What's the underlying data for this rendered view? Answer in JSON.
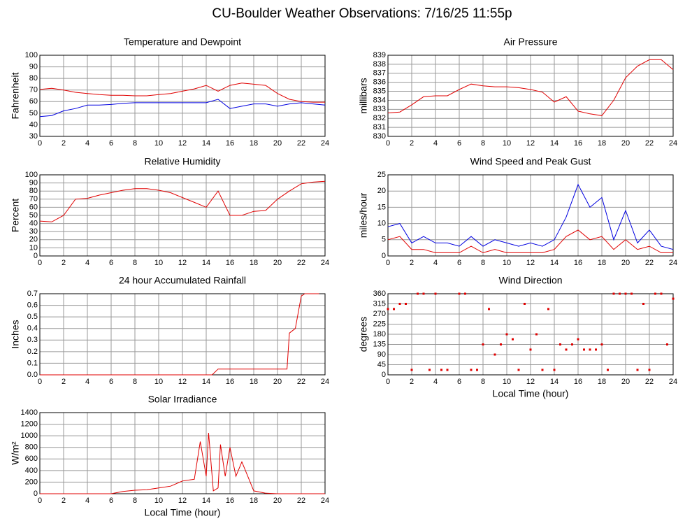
{
  "title": "CU-Boulder Weather Observations: 7/16/25 11:55p",
  "chart_data": [
    {
      "type": "line",
      "title": "Temperature and Dewpoint",
      "ylabel": "Fahrenheit",
      "x": [
        0,
        1,
        2,
        3,
        4,
        5,
        6,
        7,
        8,
        9,
        10,
        11,
        12,
        13,
        14,
        15,
        16,
        17,
        18,
        19,
        20,
        21,
        22,
        23,
        24
      ],
      "series": [
        {
          "color": "#e00000",
          "values": [
            70.5,
            71.5,
            70,
            68,
            67,
            66,
            65.5,
            65.5,
            65,
            65,
            66,
            67,
            69,
            71,
            74,
            69,
            74,
            76,
            75,
            74,
            67,
            62,
            60,
            59.5,
            59.5
          ]
        },
        {
          "color": "#0000e0",
          "values": [
            47,
            48,
            52,
            54,
            57,
            57,
            57.5,
            58.5,
            59,
            59,
            59,
            59,
            59,
            59,
            59,
            62,
            54,
            56,
            58,
            58,
            56,
            58,
            59,
            58,
            57
          ]
        }
      ],
      "xlim": [
        0,
        24
      ],
      "xticks": [
        0,
        2,
        4,
        6,
        8,
        10,
        12,
        14,
        16,
        18,
        20,
        22,
        24
      ],
      "ylim": [
        30,
        100
      ],
      "yticks": [
        30,
        40,
        50,
        60,
        70,
        80,
        90,
        100
      ],
      "grid": true
    },
    {
      "type": "line",
      "title": "Air Pressure",
      "ylabel": "millibars",
      "x": [
        0,
        1,
        2,
        3,
        4,
        5,
        6,
        7,
        8,
        9,
        10,
        11,
        12,
        13,
        14,
        15,
        16,
        17,
        18,
        19,
        20,
        21,
        22,
        23,
        24
      ],
      "series": [
        {
          "color": "#e00000",
          "values": [
            832.6,
            832.7,
            833.5,
            834.4,
            834.5,
            834.5,
            835.2,
            835.8,
            835.6,
            835.5,
            835.5,
            835.4,
            835.2,
            834.9,
            833.8,
            834.4,
            832.8,
            832.5,
            832.3,
            834.0,
            836.5,
            837.8,
            838.5,
            838.5,
            837.4
          ]
        }
      ],
      "xlim": [
        0,
        24
      ],
      "xticks": [
        0,
        2,
        4,
        6,
        8,
        10,
        12,
        14,
        16,
        18,
        20,
        22,
        24
      ],
      "ylim": [
        830,
        839
      ],
      "yticks": [
        830,
        831,
        832,
        833,
        834,
        835,
        836,
        837,
        838,
        839
      ],
      "grid": true
    },
    {
      "type": "line",
      "title": "Relative Humidity",
      "ylabel": "Percent",
      "x": [
        0,
        1,
        2,
        3,
        4,
        5,
        6,
        7,
        8,
        9,
        10,
        11,
        12,
        13,
        14,
        15,
        16,
        17,
        18,
        19,
        20,
        21,
        22,
        23,
        24
      ],
      "series": [
        {
          "color": "#e00000",
          "values": [
            43,
            42,
            50,
            70,
            71,
            75,
            78,
            81,
            83,
            83,
            81,
            78,
            72,
            66,
            60,
            80,
            50,
            50,
            55,
            56,
            70,
            80,
            89,
            91,
            92
          ]
        }
      ],
      "xlim": [
        0,
        24
      ],
      "xticks": [
        0,
        2,
        4,
        6,
        8,
        10,
        12,
        14,
        16,
        18,
        20,
        22,
        24
      ],
      "ylim": [
        0,
        100
      ],
      "yticks": [
        0,
        10,
        20,
        30,
        40,
        50,
        60,
        70,
        80,
        90,
        100
      ],
      "grid": true
    },
    {
      "type": "line",
      "title": "Wind Speed and Peak Gust",
      "ylabel": "miles/hour",
      "x": [
        0,
        1,
        2,
        3,
        4,
        5,
        6,
        7,
        8,
        9,
        10,
        11,
        12,
        13,
        14,
        15,
        16,
        17,
        18,
        19,
        20,
        21,
        22,
        23,
        24
      ],
      "series": [
        {
          "color": "#0000e0",
          "values": [
            9,
            10,
            4,
            6,
            4,
            4,
            3,
            6,
            3,
            5,
            4,
            3,
            4,
            3,
            5,
            12,
            22,
            15,
            18,
            5,
            14,
            4,
            8,
            3,
            2
          ]
        },
        {
          "color": "#e00000",
          "values": [
            5,
            6,
            2,
            2,
            1,
            1,
            1,
            3,
            1,
            2,
            1,
            1,
            1,
            1,
            2,
            6,
            8,
            5,
            6,
            2,
            5,
            2,
            3,
            1,
            1
          ]
        }
      ],
      "xlim": [
        0,
        24
      ],
      "xticks": [
        0,
        2,
        4,
        6,
        8,
        10,
        12,
        14,
        16,
        18,
        20,
        22,
        24
      ],
      "ylim": [
        0,
        25
      ],
      "yticks": [
        0,
        5,
        10,
        15,
        20,
        25
      ],
      "grid": true
    },
    {
      "type": "line",
      "title": "24 hour Accumulated Rainfall",
      "ylabel": "Inches",
      "x": [
        0,
        14.5,
        15,
        20.8,
        21,
        21.5,
        22,
        22.3,
        23.5
      ],
      "series": [
        {
          "color": "#e00000",
          "values": [
            0,
            0,
            0.05,
            0.05,
            0.36,
            0.4,
            0.68,
            0.7,
            0.7
          ]
        }
      ],
      "xlim": [
        0,
        24
      ],
      "xticks": [
        0,
        2,
        4,
        6,
        8,
        10,
        12,
        14,
        16,
        18,
        20,
        22,
        24
      ],
      "ylim": [
        0,
        0.7
      ],
      "yticks": [
        {
          "value": 0,
          "label": "0.0"
        },
        0.1,
        0.2,
        0.3,
        0.4,
        0.5,
        0.6,
        0.7
      ],
      "grid": true
    },
    {
      "type": "scatter",
      "title": "Wind Direction",
      "ylabel": "degrees",
      "xlabel": "Local Time (hour)",
      "x": [
        0,
        0.5,
        1,
        1.5,
        2,
        2.5,
        3,
        3.5,
        4,
        4.5,
        5,
        6,
        6.5,
        7,
        7.5,
        8,
        8.5,
        9,
        9.5,
        10,
        10.5,
        11,
        11.5,
        12,
        12.5,
        13,
        13.5,
        14,
        14.5,
        15,
        15.5,
        16,
        16.5,
        17,
        17.5,
        18,
        18.5,
        19,
        19.5,
        20,
        20.5,
        21,
        21.5,
        22,
        22.5,
        23,
        23.5,
        24
      ],
      "series": [
        {
          "color": "#e00000",
          "values": [
            292,
            292,
            315,
            315,
            22,
            360,
            360,
            22,
            360,
            22,
            22,
            360,
            360,
            22,
            22,
            135,
            292,
            90,
            135,
            180,
            158,
            22,
            315,
            112,
            180,
            22,
            292,
            22,
            135,
            112,
            135,
            158,
            112,
            112,
            112,
            135,
            22,
            360,
            360,
            360,
            360,
            22,
            315,
            22,
            360,
            360,
            135,
            338
          ]
        }
      ],
      "xlim": [
        0,
        24
      ],
      "xticks": [
        0,
        2,
        4,
        6,
        8,
        10,
        12,
        14,
        16,
        18,
        20,
        22,
        24
      ],
      "ylim": [
        0,
        360
      ],
      "yticks": [
        0,
        45,
        90,
        135,
        180,
        225,
        270,
        315,
        360
      ],
      "grid": true
    },
    {
      "type": "line",
      "title": "Solar Irradiance",
      "ylabel": "W/m²",
      "xlabel": "Local Time (hour)",
      "x": [
        0,
        6,
        7,
        8,
        9,
        10,
        11,
        12,
        13,
        13.5,
        14,
        14.2,
        14.6,
        15,
        15.2,
        15.6,
        16,
        16.5,
        17,
        17.5,
        18,
        19,
        20,
        24
      ],
      "series": [
        {
          "color": "#e00000",
          "values": [
            0,
            0,
            40,
            60,
            70,
            100,
            130,
            220,
            250,
            900,
            300,
            1050,
            50,
            100,
            850,
            300,
            800,
            300,
            550,
            300,
            50,
            10,
            0,
            0
          ]
        }
      ],
      "xlim": [
        0,
        24
      ],
      "xticks": [
        0,
        2,
        4,
        6,
        8,
        10,
        12,
        14,
        16,
        18,
        20,
        22,
        24
      ],
      "ylim": [
        0,
        1400
      ],
      "yticks": [
        0,
        200,
        400,
        600,
        800,
        1000,
        1200,
        1400
      ],
      "grid": true
    }
  ]
}
